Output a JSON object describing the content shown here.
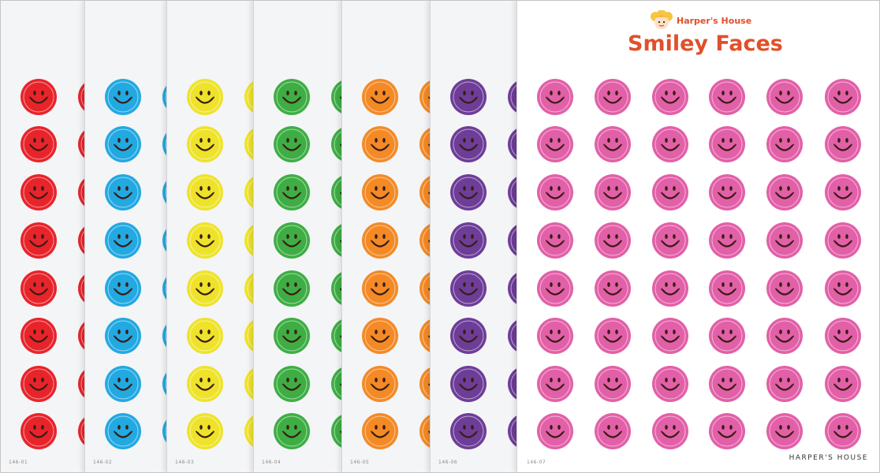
{
  "sheets": [
    {
      "code": "146-01",
      "color": "#e8242b"
    },
    {
      "code": "146-02",
      "color": "#22a9e1"
    },
    {
      "code": "146-03",
      "color": "#eee32a"
    },
    {
      "code": "146-04",
      "color": "#3eae44"
    },
    {
      "code": "146-05",
      "color": "#f48a26"
    },
    {
      "code": "146-06",
      "color": "#6e3d98"
    },
    {
      "code": "146-07",
      "color": "#e260a8"
    }
  ],
  "brand": {
    "name": "Harper's House",
    "logo_icon": "blonde-girl-face-icon"
  },
  "title": "Smiley Faces",
  "footer": {
    "brand": "HARPER'S HOUSE"
  },
  "sticker_icon": "smiley-face-icon",
  "face_color": "#3a1d14"
}
